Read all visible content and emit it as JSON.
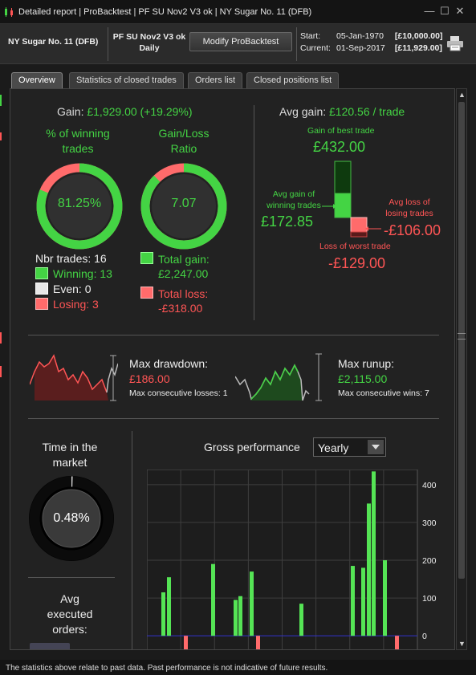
{
  "window": {
    "title": "Detailed report | ProBacktest | PF SU Nov2 V3 ok | NY Sugar No. 11 (DFB)",
    "minimize": "—",
    "maximize": "☐",
    "close": "✕"
  },
  "header": {
    "instrument": "NY Sugar No. 11 (DFB)",
    "strategy_name": "PF SU Nov2 V3 ok",
    "timeframe": "Daily",
    "modify_label": "Modify ProBacktest",
    "start_label": "Start:",
    "start_date": "05-Jan-1970",
    "start_value": "[£10,000.00]",
    "current_label": "Current:",
    "current_date": "01-Sep-2017",
    "current_value": "[£11,929.00]"
  },
  "tabs": [
    {
      "label": "Overview",
      "active": true
    },
    {
      "label": "Statistics of closed trades",
      "active": false
    },
    {
      "label": "Orders list",
      "active": false
    },
    {
      "label": "Closed positions list",
      "active": false
    }
  ],
  "gain": {
    "label": "Gain:",
    "value": "£1,929.00 (+19.29%)"
  },
  "winning_pct": {
    "title_line1": "% of winning",
    "title_line2": "trades",
    "value": "81.25%",
    "fraction": 0.8125
  },
  "gain_loss": {
    "title_line1": "Gain/Loss",
    "title_line2": "Ratio",
    "value": "7.07",
    "fraction": 0.876
  },
  "trades": {
    "nbr_label": "Nbr trades: 16",
    "winning": "Winning: 13",
    "even": "Even: 0",
    "losing": "Losing: 3"
  },
  "totals": {
    "gain_label": "Total gain:",
    "gain_value": "£2,247.00",
    "loss_label": "Total loss:",
    "loss_value": "-£318.00"
  },
  "avg": {
    "avg_gain_label": "Avg gain:",
    "avg_gain_value": "£120.56 / trade",
    "best_label": "Gain of best trade",
    "best_value": "£432.00",
    "avg_win_label_1": "Avg gain of",
    "avg_win_label_2": "winning trades",
    "avg_win_value": "£172.85",
    "avg_loss_label_1": "Avg loss of",
    "avg_loss_label_2": "losing trades",
    "avg_loss_value": "-£106.00",
    "worst_label": "Loss of worst trade",
    "worst_value": "-£129.00"
  },
  "drawdown": {
    "label": "Max drawdown:",
    "value": "£186.00",
    "sub": "Max consecutive losses: 1"
  },
  "runup": {
    "label": "Max runup:",
    "value": "£2,115.00",
    "sub": "Max consecutive wins: 7"
  },
  "time_in_market": {
    "title_line1": "Time in the",
    "title_line2": "market",
    "value": "0.48%",
    "fraction": 0.0048
  },
  "avg_exec": {
    "line1": "Avg",
    "line2": "executed",
    "line3": "orders:"
  },
  "gross_perf": {
    "title": "Gross performance",
    "period": "Yearly"
  },
  "chart_data": {
    "type": "bar",
    "title": "Gross performance",
    "ylim": [
      -40,
      440
    ],
    "yticks": [
      0,
      100,
      200,
      300,
      400
    ],
    "grid": true,
    "values": [
      115,
      155,
      -38,
      190,
      95,
      105,
      170,
      -38,
      85,
      185,
      180,
      350,
      435,
      200,
      -40
    ]
  },
  "footer": {
    "disclaimer": "The statistics above relate to past data. Past performance is not indicative of future results."
  },
  "colors": {
    "green": "#44d444",
    "red": "#ff5555",
    "bar_green": "#55e455",
    "bar_red": "#ff6b6b"
  }
}
